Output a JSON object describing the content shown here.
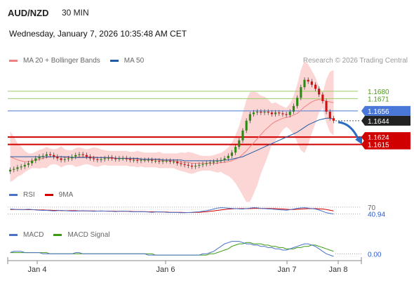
{
  "header": {
    "pair": "AUD/NZD",
    "timeframe": "30 MIN",
    "datetime": "Wednesday, January 7, 2026 10:35:48 AM CET"
  },
  "legend_price": [
    {
      "label": "MA 20 + Bollinger Bands",
      "color": "#f08080"
    },
    {
      "label": "MA 50",
      "color": "#1f5aa6"
    }
  ],
  "credit": "Research © 2026 Trading Central",
  "legend_rsi": [
    {
      "label": "RSI",
      "color": "#4a72c8"
    },
    {
      "label": "9MA",
      "color": "#d40000"
    }
  ],
  "legend_macd": [
    {
      "label": "MACD",
      "color": "#4a72c8"
    },
    {
      "label": "MACD Signal",
      "color": "#3c9a14"
    }
  ],
  "colors": {
    "candle_up": "#2b8a12",
    "candle_down": "#cc1010",
    "resistance": "#9ccc6a",
    "pivot": "#4a78d8",
    "support": "#d00000",
    "last": "#222222",
    "bb_fill": "#fbd6d4",
    "arrow": "#2a6cc0"
  },
  "chart_data": [
    {
      "type": "candlestick",
      "instrument": "AUD/NZD",
      "interval": "30 MIN",
      "x_ticks": [
        "Jan 4",
        "Jan 6",
        "Jan 7",
        "Jan 8"
      ],
      "ylim": [
        1.157,
        1.171
      ],
      "levels": [
        {
          "label": "1.1680",
          "value": 1.168,
          "kind": "resistance"
        },
        {
          "label": "1.1671",
          "value": 1.1671,
          "kind": "resistance"
        },
        {
          "label": "1.1656",
          "value": 1.1656,
          "kind": "pivot"
        },
        {
          "label": "1.1644",
          "value": 1.1644,
          "kind": "last"
        },
        {
          "label": "1.1624",
          "value": 1.1624,
          "kind": "support"
        },
        {
          "label": "1.1615",
          "value": 1.1615,
          "kind": "support"
        }
      ],
      "close_series": [
        1.1584,
        1.1585,
        1.1587,
        1.1588,
        1.159,
        1.1592,
        1.1595,
        1.1598,
        1.16,
        1.1601,
        1.1603,
        1.1602,
        1.16,
        1.1598,
        1.1596,
        1.1597,
        1.1598,
        1.16,
        1.1602,
        1.1603,
        1.1602,
        1.16,
        1.1598,
        1.1597,
        1.1596,
        1.1597,
        1.1598,
        1.1599,
        1.1598,
        1.1597,
        1.1598,
        1.1598,
        1.1597,
        1.1596,
        1.1596,
        1.1595,
        1.1596,
        1.1596,
        1.1596,
        1.1595,
        1.1595,
        1.1594,
        1.1595,
        1.1595,
        1.1594,
        1.1594,
        1.1592,
        1.1591,
        1.159,
        1.1589,
        1.1588,
        1.1589,
        1.159,
        1.1591,
        1.1592,
        1.1593,
        1.1594,
        1.1595,
        1.1596,
        1.1598,
        1.1601,
        1.1605,
        1.1612,
        1.162,
        1.1632,
        1.1644,
        1.1652,
        1.1654,
        1.1655,
        1.1654,
        1.1655,
        1.1654,
        1.1652,
        1.1654,
        1.1653,
        1.1652,
        1.1651,
        1.1655,
        1.1662,
        1.1672,
        1.1685,
        1.1694,
        1.1692,
        1.1688,
        1.1683,
        1.1676,
        1.1668,
        1.1655,
        1.1647,
        1.1644
      ],
      "open_series": [
        1.1582,
        1.1584,
        1.1585,
        1.1587,
        1.1588,
        1.159,
        1.1592,
        1.1595,
        1.1598,
        1.16,
        1.1601,
        1.1603,
        1.1602,
        1.16,
        1.1598,
        1.1596,
        1.1597,
        1.1598,
        1.16,
        1.1602,
        1.1603,
        1.1602,
        1.16,
        1.1598,
        1.1597,
        1.1596,
        1.1597,
        1.1598,
        1.1599,
        1.1598,
        1.1597,
        1.1598,
        1.1598,
        1.1597,
        1.1596,
        1.1596,
        1.1595,
        1.1596,
        1.1596,
        1.1596,
        1.1595,
        1.1595,
        1.1594,
        1.1595,
        1.1595,
        1.1594,
        1.1594,
        1.1592,
        1.1591,
        1.159,
        1.1589,
        1.1588,
        1.1589,
        1.159,
        1.1591,
        1.1592,
        1.1593,
        1.1594,
        1.1595,
        1.1596,
        1.1598,
        1.1601,
        1.1605,
        1.1612,
        1.162,
        1.1632,
        1.1644,
        1.1652,
        1.1654,
        1.1655,
        1.1654,
        1.1655,
        1.1654,
        1.1652,
        1.1654,
        1.1653,
        1.1652,
        1.1651,
        1.1655,
        1.1662,
        1.1672,
        1.1685,
        1.1694,
        1.1692,
        1.1688,
        1.1683,
        1.1676,
        1.1668,
        1.1655,
        1.1647
      ],
      "ma20": [
        1.16,
        1.1598,
        1.1596,
        1.1595,
        1.1594,
        1.1594,
        1.1595,
        1.1596,
        1.1597,
        1.1598,
        1.1599,
        1.16,
        1.16,
        1.16,
        1.16,
        1.1599,
        1.1599,
        1.1599,
        1.1599,
        1.16,
        1.16,
        1.16,
        1.16,
        1.16,
        1.1599,
        1.1599,
        1.1599,
        1.1598,
        1.1598,
        1.1598,
        1.1598,
        1.1598,
        1.1598,
        1.1597,
        1.1597,
        1.1597,
        1.1597,
        1.1596,
        1.1596,
        1.1596,
        1.1596,
        1.1596,
        1.1595,
        1.1595,
        1.1595,
        1.1595,
        1.1594,
        1.1594,
        1.1593,
        1.1593,
        1.1592,
        1.1592,
        1.1592,
        1.1592,
        1.1592,
        1.1592,
        1.1592,
        1.1592,
        1.1593,
        1.1593,
        1.1594,
        1.1595,
        1.1597,
        1.1599,
        1.1603,
        1.1607,
        1.1612,
        1.1617,
        1.1622,
        1.1627,
        1.1632,
        1.1636,
        1.164,
        1.1643,
        1.1645,
        1.1647,
        1.1648,
        1.1649,
        1.1651,
        1.1653,
        1.1657,
        1.1661,
        1.1664,
        1.1667,
        1.1669,
        1.167,
        1.1669,
        1.1668,
        1.1667,
        1.1666
      ],
      "ma50": [
        1.16,
        1.16,
        1.16,
        1.16,
        1.16,
        1.16,
        1.16,
        1.16,
        1.16,
        1.16,
        1.16,
        1.16,
        1.16,
        1.16,
        1.16,
        1.16,
        1.16,
        1.1599,
        1.1599,
        1.1599,
        1.1599,
        1.1599,
        1.1599,
        1.1599,
        1.1599,
        1.1599,
        1.1599,
        1.1599,
        1.1599,
        1.1598,
        1.1598,
        1.1598,
        1.1598,
        1.1598,
        1.1598,
        1.1598,
        1.1597,
        1.1597,
        1.1597,
        1.1597,
        1.1597,
        1.1597,
        1.1596,
        1.1596,
        1.1596,
        1.1596,
        1.1596,
        1.1596,
        1.1595,
        1.1595,
        1.1595,
        1.1595,
        1.1595,
        1.1595,
        1.1595,
        1.1595,
        1.1595,
        1.1595,
        1.1595,
        1.1596,
        1.1596,
        1.1597,
        1.1598,
        1.1599,
        1.16,
        1.1602,
        1.1604,
        1.1606,
        1.1608,
        1.161,
        1.1612,
        1.1614,
        1.1616,
        1.1618,
        1.162,
        1.1622,
        1.1624,
        1.1626,
        1.1628,
        1.163,
        1.1633,
        1.1636,
        1.1639,
        1.1641,
        1.1643,
        1.1645,
        1.1646,
        1.1647,
        1.1647,
        1.1646
      ],
      "forecast": {
        "from": 1.1644,
        "to": 1.1615
      }
    },
    {
      "type": "line",
      "name": "RSI",
      "ylim": [
        0,
        100
      ],
      "levels": [
        {
          "label": "70",
          "value": 70
        },
        {
          "label": "40.94",
          "value": 40.94
        }
      ],
      "rsi": [
        62,
        61,
        60,
        59,
        60,
        61,
        60,
        58,
        57,
        56,
        56,
        55,
        54,
        55,
        56,
        55,
        54,
        53,
        53,
        54,
        55,
        54,
        53,
        52,
        53,
        54,
        53,
        52,
        52,
        51,
        52,
        53,
        52,
        51,
        50,
        50,
        51,
        50,
        49,
        48,
        49,
        50,
        49,
        48,
        47,
        48,
        47,
        46,
        46,
        47,
        48,
        49,
        50,
        52,
        55,
        58,
        62,
        66,
        68,
        67,
        66,
        65,
        64,
        63,
        62,
        64,
        66,
        68,
        67,
        65,
        64,
        63,
        62,
        60,
        59,
        58,
        57,
        59,
        62,
        65,
        67,
        68,
        66,
        64,
        62,
        58,
        52,
        46,
        43,
        41
      ],
      "ma9": [
        60,
        60,
        60,
        60,
        59,
        59,
        59,
        59,
        58,
        58,
        57,
        57,
        56,
        56,
        55,
        55,
        55,
        55,
        55,
        54,
        54,
        54,
        54,
        54,
        53,
        53,
        53,
        53,
        53,
        52,
        52,
        52,
        52,
        52,
        51,
        51,
        51,
        51,
        50,
        50,
        50,
        49,
        49,
        49,
        48,
        48,
        48,
        48,
        47,
        47,
        47,
        48,
        48,
        49,
        50,
        52,
        54,
        56,
        58,
        60,
        62,
        63,
        64,
        64,
        64,
        64,
        64,
        65,
        65,
        65,
        65,
        65,
        64,
        64,
        63,
        62,
        61,
        60,
        60,
        61,
        62,
        63,
        64,
        64,
        64,
        63,
        62,
        60,
        57,
        54
      ]
    },
    {
      "type": "line",
      "name": "MACD",
      "levels": [
        {
          "label": "0.00",
          "value": 0
        }
      ],
      "ylim": [
        -0.0006,
        0.0012
      ],
      "macd": [
        0.0001,
        0.0002,
        0.0002,
        0.0002,
        0.0001,
        0.0001,
        0.0001,
        0.0001,
        0.0001,
        0.0,
        0.0,
        0.0,
        0.0,
        0.0,
        0.0,
        0.0,
        0.0,
        0.0,
        0.0001,
        0.0001,
        0.0,
        0.0,
        0.0,
        0.0,
        0.0,
        0.0,
        0.0,
        0.0,
        0.0,
        0.0,
        0.0,
        0.0,
        0.0,
        0.0,
        0.0,
        0.0,
        0.0,
        0.0,
        -0.0001,
        -0.0001,
        -0.0001,
        -0.0001,
        -0.0001,
        -0.0001,
        -0.0001,
        -0.0001,
        -0.0001,
        -0.0001,
        -0.0001,
        -0.0001,
        -0.0001,
        -0.0001,
        -0.0001,
        0.0,
        0.0,
        0.0001,
        0.0002,
        0.0004,
        0.0006,
        0.0008,
        0.0009,
        0.001,
        0.001,
        0.001,
        0.0009,
        0.0008,
        0.0008,
        0.0007,
        0.0007,
        0.0006,
        0.0006,
        0.0005,
        0.0005,
        0.0004,
        0.0004,
        0.0003,
        0.0003,
        0.0004,
        0.0005,
        0.0006,
        0.0007,
        0.0008,
        0.0008,
        0.0007,
        0.0006,
        0.0004,
        0.0002,
        0.0,
        -0.0001,
        -0.0002
      ],
      "signal": [
        0.0001,
        0.0001,
        0.0001,
        0.0001,
        0.0001,
        0.0001,
        0.0001,
        0.0001,
        0.0001,
        0.0001,
        0.0001,
        0.0,
        0.0,
        0.0,
        0.0,
        0.0,
        0.0,
        0.0,
        0.0,
        0.0,
        0.0,
        0.0,
        0.0,
        0.0,
        0.0,
        0.0,
        0.0,
        0.0,
        0.0,
        0.0,
        0.0,
        0.0,
        0.0,
        0.0,
        0.0,
        0.0,
        0.0,
        0.0,
        0.0,
        0.0,
        -0.0001,
        -0.0001,
        -0.0001,
        -0.0001,
        -0.0001,
        -0.0001,
        -0.0001,
        -0.0001,
        -0.0001,
        -0.0001,
        -0.0001,
        -0.0001,
        -0.0001,
        -0.0001,
        -0.0001,
        0.0,
        0.0,
        0.0001,
        0.0002,
        0.0003,
        0.0004,
        0.0006,
        0.0007,
        0.0008,
        0.0008,
        0.0009,
        0.0009,
        0.0008,
        0.0008,
        0.0008,
        0.0007,
        0.0007,
        0.0006,
        0.0006,
        0.0005,
        0.0005,
        0.0004,
        0.0004,
        0.0004,
        0.0005,
        0.0005,
        0.0006,
        0.0006,
        0.0007,
        0.0007,
        0.0006,
        0.0005,
        0.0004,
        0.0003,
        0.0002
      ]
    }
  ]
}
